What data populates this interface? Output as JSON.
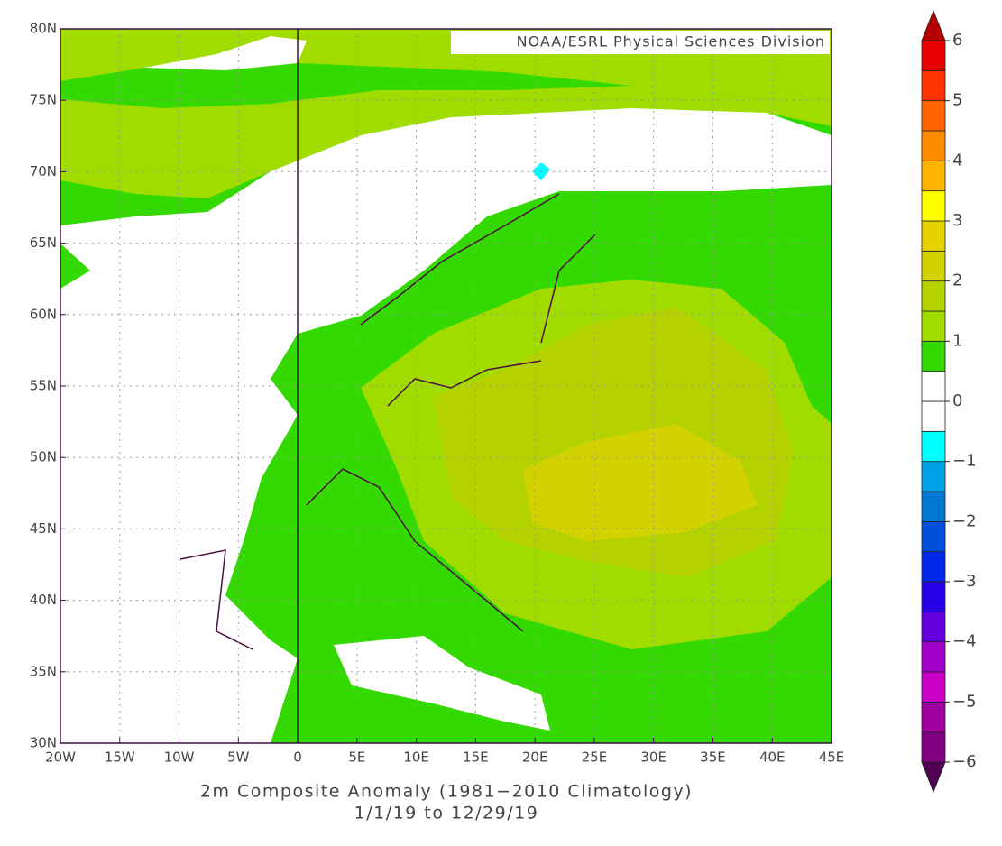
{
  "chart_data": {
    "type": "map",
    "title": "2m   Composite Anomaly (1981−2010 Climatology)",
    "subtitle": "1/1/19  to 12/29/19",
    "credit": "NOAA/ESRL Physical Sciences Division",
    "xlim": [
      -20,
      45
    ],
    "ylim": [
      30,
      80
    ],
    "xticks": [
      {
        "value": -20,
        "label": "20W"
      },
      {
        "value": -15,
        "label": "15W"
      },
      {
        "value": -10,
        "label": "10W"
      },
      {
        "value": -5,
        "label": "5W"
      },
      0,
      {
        "value": 5,
        "label": "5E"
      },
      {
        "value": 10,
        "label": "10E"
      },
      {
        "value": 15,
        "label": "15E"
      },
      {
        "value": 20,
        "label": "20E"
      },
      {
        "value": 25,
        "label": "25E"
      },
      {
        "value": 30,
        "label": "30E"
      },
      {
        "value": 35,
        "label": "35E"
      },
      {
        "value": 40,
        "label": "40E"
      },
      {
        "value": 45,
        "label": "45E"
      }
    ],
    "yticks": [
      {
        "value": 30,
        "label": "30N"
      },
      {
        "value": 35,
        "label": "35N"
      },
      {
        "value": 40,
        "label": "40N"
      },
      {
        "value": 45,
        "label": "45N"
      },
      {
        "value": 50,
        "label": "50N"
      },
      {
        "value": 55,
        "label": "55N"
      },
      {
        "value": 60,
        "label": "60N"
      },
      {
        "value": 65,
        "label": "65N"
      },
      {
        "value": 70,
        "label": "70N"
      },
      {
        "value": 75,
        "label": "75N"
      },
      {
        "value": 80,
        "label": "80N"
      }
    ],
    "grid": true,
    "colorbar": {
      "levels": [
        -6,
        -5.5,
        -5,
        -4.5,
        -4,
        -3.5,
        -3,
        -2.5,
        -2,
        -1.5,
        -1,
        -0.5,
        0,
        0.5,
        1,
        1.5,
        2,
        2.5,
        3,
        3.5,
        4,
        4.5,
        5,
        5.5,
        6
      ],
      "colors": [
        "#820082",
        "#a000a0",
        "#c800c8",
        "#a000c8",
        "#6400dc",
        "#2800e6",
        "#0028e6",
        "#0050dc",
        "#0078d2",
        "#00a0e6",
        "#00ffff",
        "#ffffff",
        "#ffffff",
        "#33d900",
        "#a0dc00",
        "#b4d200",
        "#d2d200",
        "#e6d200",
        "#ffff00",
        "#ffb400",
        "#ff8c00",
        "#ff6600",
        "#ff3300",
        "#e60000"
      ],
      "under_color": "#500050",
      "over_color": "#b40000",
      "ticks": [
        {
          "value": -6,
          "label": "−6"
        },
        {
          "value": -5,
          "label": "−5"
        },
        {
          "value": -4,
          "label": "−4"
        },
        {
          "value": -3,
          "label": "−3"
        },
        {
          "value": -2,
          "label": "−2"
        },
        {
          "value": -1,
          "label": "−1"
        },
        0,
        1,
        2,
        3,
        4,
        5,
        6
      ]
    }
  }
}
